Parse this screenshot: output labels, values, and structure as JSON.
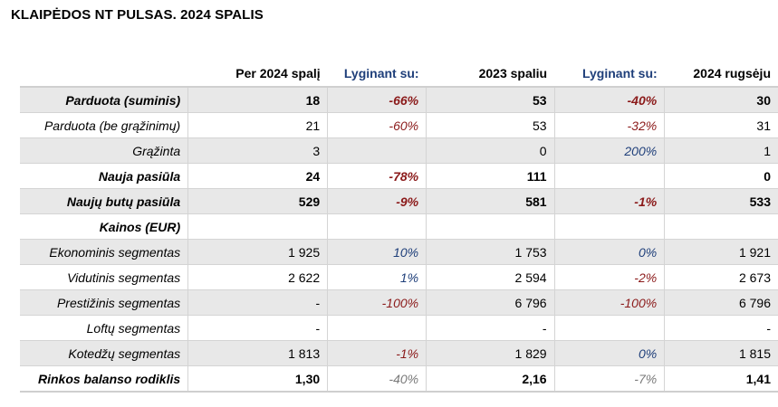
{
  "title": "KLAIPĖDOS NT PULSAS. 2024 SPALIS",
  "headers": [
    "",
    "Per 2024 spalį",
    "Lyginant su:",
    "2023 spaliu",
    "Lyginant su:",
    "2024 rugsėju"
  ],
  "colors": {
    "negative": "#8b1a1a",
    "positive": "#1f3f7a",
    "neutral": "#7a7a7a",
    "shade": "#e8e8e8"
  },
  "rows": [
    {
      "label": "Parduota (suminis)",
      "bold": true,
      "shade": true,
      "cells": [
        "18",
        "-66%",
        "53",
        "-40%",
        "30"
      ],
      "pct_style": [
        "neg",
        "neg"
      ]
    },
    {
      "label": "Parduota (be grąžinimų)",
      "bold": false,
      "shade": false,
      "cells": [
        "21",
        "-60%",
        "53",
        "-32%",
        "31"
      ],
      "pct_style": [
        "neg",
        "neg"
      ]
    },
    {
      "label": "Grąžinta",
      "bold": false,
      "shade": true,
      "cells": [
        "3",
        "",
        "0",
        "200%",
        "1"
      ],
      "pct_style": [
        "neg",
        "pos"
      ]
    },
    {
      "label": "Nauja pasiūla",
      "bold": true,
      "shade": false,
      "cells": [
        "24",
        "-78%",
        "111",
        "",
        "0"
      ],
      "pct_style": [
        "neg",
        "neg"
      ]
    },
    {
      "label": "Naujų butų pasiūla",
      "bold": true,
      "shade": true,
      "cells": [
        "529",
        "-9%",
        "581",
        "-1%",
        "533"
      ],
      "pct_style": [
        "neg",
        "neg"
      ]
    },
    {
      "label": "Kainos (EUR)",
      "bold": true,
      "shade": false,
      "cells": [
        "",
        "",
        "",
        "",
        ""
      ],
      "pct_style": [
        "neg",
        "neg"
      ]
    },
    {
      "label": "Ekonominis segmentas",
      "bold": false,
      "shade": true,
      "cells": [
        "1 925",
        "10%",
        "1 753",
        "0%",
        "1 921"
      ],
      "pct_style": [
        "pos",
        "pos"
      ]
    },
    {
      "label": "Vidutinis segmentas",
      "bold": false,
      "shade": false,
      "cells": [
        "2 622",
        "1%",
        "2 594",
        "-2%",
        "2 673"
      ],
      "pct_style": [
        "pos",
        "neg"
      ]
    },
    {
      "label": "Prestižinis segmentas",
      "bold": false,
      "shade": true,
      "cells": [
        "-",
        "-100%",
        "6 796",
        "-100%",
        "6 796"
      ],
      "pct_style": [
        "neg",
        "neg"
      ]
    },
    {
      "label": "Loftų segmentas",
      "bold": false,
      "shade": false,
      "cells": [
        "-",
        "",
        "-",
        "",
        "-"
      ],
      "pct_style": [
        "neg",
        "neg"
      ]
    },
    {
      "label": "Kotedžų segmentas",
      "bold": false,
      "shade": true,
      "cells": [
        "1 813",
        "-1%",
        "1 829",
        "0%",
        "1 815"
      ],
      "pct_style": [
        "neg",
        "pos"
      ]
    },
    {
      "label": "Rinkos balanso rodiklis",
      "bold": true,
      "shade": false,
      "cells": [
        "1,30",
        "-40%",
        "2,16",
        "-7%",
        "1,41"
      ],
      "pct_style": [
        "gray",
        "gray"
      ]
    }
  ]
}
